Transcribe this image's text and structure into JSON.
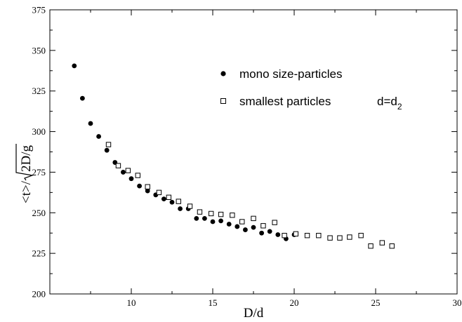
{
  "chart_data": {
    "type": "scatter",
    "title": "",
    "xlabel": "D/d",
    "ylabel_prefix": "<t>/",
    "ylabel_radicand": "2D/g",
    "xlim": [
      5,
      30
    ],
    "ylim": [
      200,
      375
    ],
    "xticks": [
      10,
      15,
      20,
      25,
      30
    ],
    "yticks": [
      200,
      225,
      250,
      275,
      300,
      325,
      350,
      375
    ],
    "grid": false,
    "legend_position": "upper-right",
    "legend_annotation": {
      "base": "d=d",
      "subscript": "2"
    },
    "series": [
      {
        "name": "mono size-particles",
        "marker": "filled-circle",
        "color": "#000000",
        "points": [
          [
            6.5,
            340.5
          ],
          [
            7.0,
            320.5
          ],
          [
            7.5,
            305
          ],
          [
            8.0,
            297
          ],
          [
            8.5,
            288.5
          ],
          [
            9.0,
            281
          ],
          [
            9.5,
            275
          ],
          [
            10.0,
            271
          ],
          [
            10.5,
            266.5
          ],
          [
            11.0,
            263.5
          ],
          [
            11.5,
            261
          ],
          [
            12.0,
            258.5
          ],
          [
            12.5,
            256.5
          ],
          [
            13.0,
            252.5
          ],
          [
            13.5,
            252.5
          ],
          [
            14.0,
            246.5
          ],
          [
            14.5,
            246.5
          ],
          [
            15.0,
            244.5
          ],
          [
            15.5,
            245
          ],
          [
            16.0,
            243
          ],
          [
            16.5,
            241.5
          ],
          [
            17.0,
            239.5
          ],
          [
            17.5,
            241
          ],
          [
            18.0,
            237.5
          ],
          [
            18.5,
            238.5
          ],
          [
            19.0,
            236.5
          ],
          [
            19.5,
            234
          ],
          [
            20.0,
            236.5
          ]
        ]
      },
      {
        "name": "smallest particles",
        "marker": "open-square",
        "color": "#000000",
        "points": [
          [
            8.6,
            292
          ],
          [
            9.2,
            279
          ],
          [
            9.8,
            276
          ],
          [
            10.4,
            273
          ],
          [
            11.0,
            266
          ],
          [
            11.7,
            262.5
          ],
          [
            12.3,
            259.5
          ],
          [
            12.9,
            257
          ],
          [
            13.6,
            254
          ],
          [
            14.2,
            250.5
          ],
          [
            14.9,
            249.5
          ],
          [
            15.5,
            249
          ],
          [
            16.2,
            248.5
          ],
          [
            16.8,
            244.5
          ],
          [
            17.5,
            246.5
          ],
          [
            18.1,
            242
          ],
          [
            18.8,
            244
          ],
          [
            19.4,
            236
          ],
          [
            20.1,
            237
          ],
          [
            20.8,
            236
          ],
          [
            21.5,
            236
          ],
          [
            22.2,
            234.5
          ],
          [
            22.8,
            234.5
          ],
          [
            23.4,
            235
          ],
          [
            24.1,
            236
          ],
          [
            24.7,
            229.5
          ],
          [
            25.4,
            231.5
          ],
          [
            26.0,
            229.5
          ]
        ]
      }
    ]
  }
}
